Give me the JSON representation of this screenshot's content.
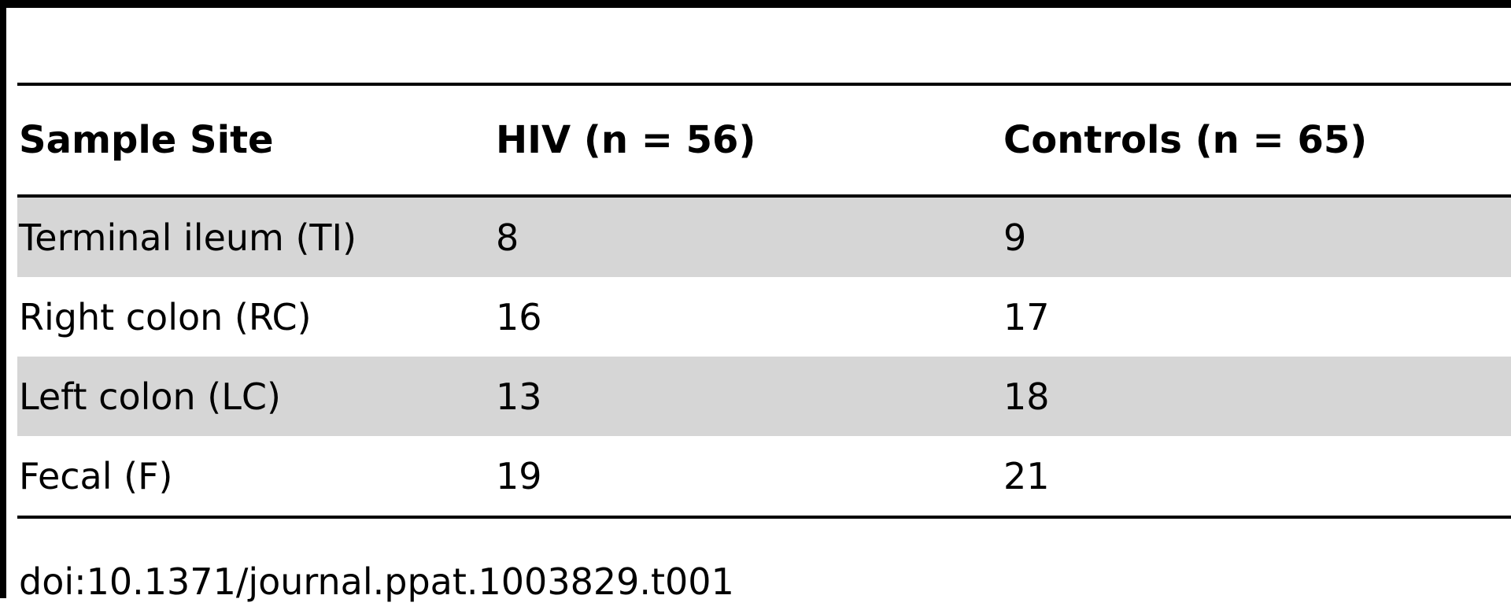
{
  "table": {
    "headers": [
      "Sample Site",
      "HIV (n = 56)",
      "Controls (n = 65)"
    ],
    "rows": [
      [
        "Terminal ileum (TI)",
        "8",
        "9"
      ],
      [
        "Right colon (RC)",
        "16",
        "17"
      ],
      [
        "Left colon (LC)",
        "13",
        "18"
      ],
      [
        "Fecal (F)",
        "19",
        "21"
      ]
    ]
  },
  "footer": {
    "doi": "doi:10.1371/journal.ppat.1003829.t001"
  }
}
